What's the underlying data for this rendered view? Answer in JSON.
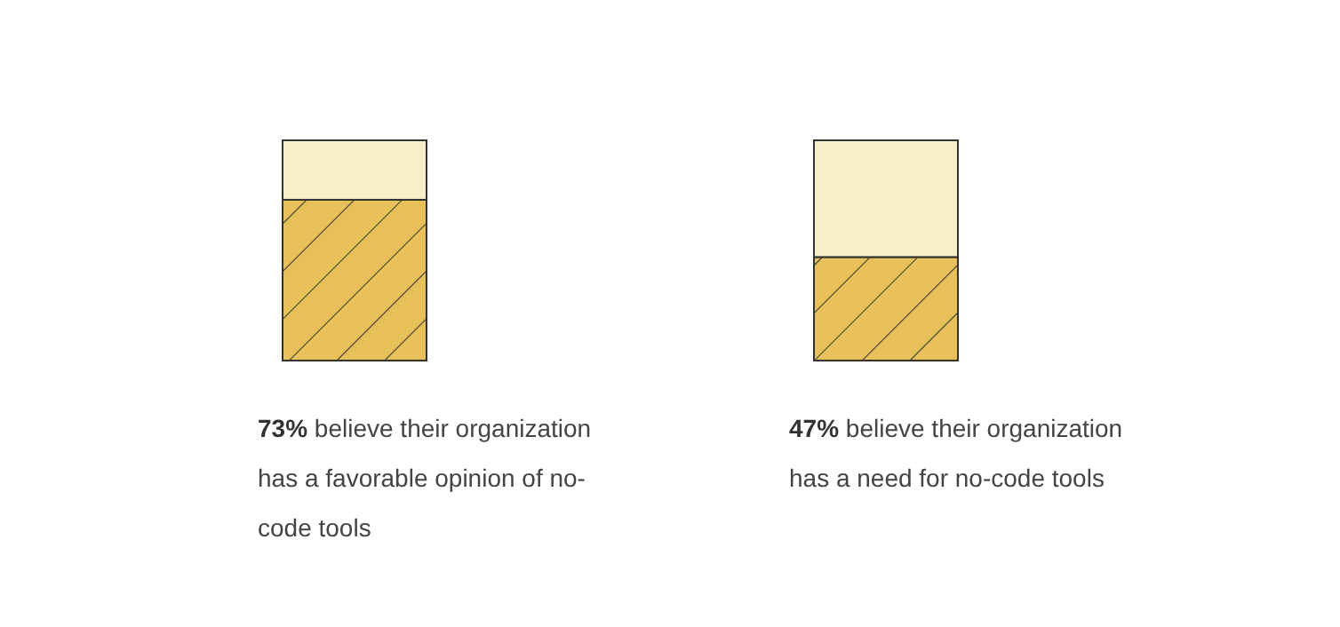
{
  "chart_data": [
    {
      "type": "bar",
      "stacked": true,
      "categories": [
        null
      ],
      "ylim": [
        0,
        100
      ],
      "series": [
        {
          "color": "#e8c05a",
          "values": [
            73
          ],
          "value_labels": [
            "73%"
          ]
        },
        {
          "color": "#f8efc6",
          "values": [
            27
          ]
        }
      ],
      "annotations": [
        "believe their organization has a favorable opinion of no-code tools"
      ]
    },
    {
      "type": "bar",
      "stacked": true,
      "categories": [
        null
      ],
      "ylim": [
        0,
        100
      ],
      "series": [
        {
          "color": "#e8c05a",
          "values": [
            47
          ],
          "value_labels": [
            "47%"
          ]
        },
        {
          "color": "#f8efc6",
          "values": [
            53
          ]
        }
      ],
      "annotations": [
        "believe their organization has a need for no-code tools"
      ]
    }
  ]
}
